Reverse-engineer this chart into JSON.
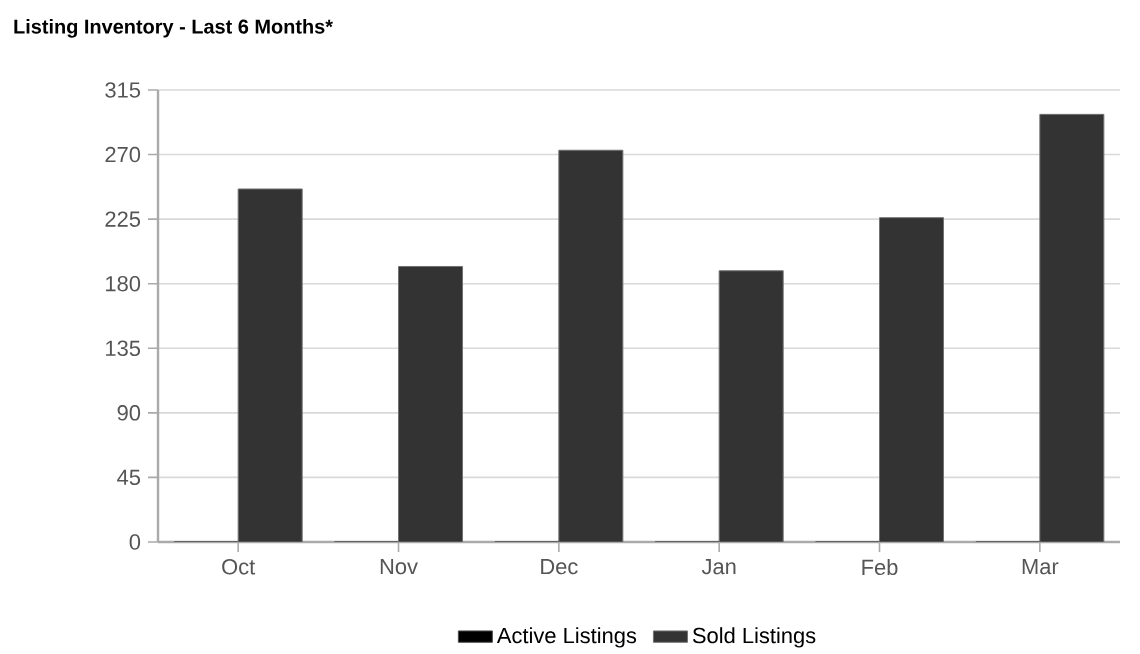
{
  "chart_data": {
    "type": "bar",
    "title": "Listing Inventory - Last 6 Months*",
    "categories": [
      "Oct",
      "Nov",
      "Dec",
      "Jan",
      "Feb",
      "Mar"
    ],
    "series": [
      {
        "name": "Active Listings",
        "color": "#000000",
        "values": [
          0,
          0,
          0,
          0,
          0,
          0
        ]
      },
      {
        "name": "Sold Listings",
        "color": "#333333",
        "values": [
          246,
          192,
          273,
          189,
          226,
          298
        ]
      }
    ],
    "ylim": [
      0,
      315
    ],
    "yticks": [
      0,
      45,
      90,
      135,
      180,
      225,
      270,
      315
    ],
    "grid": "y",
    "legend": "bottom"
  }
}
